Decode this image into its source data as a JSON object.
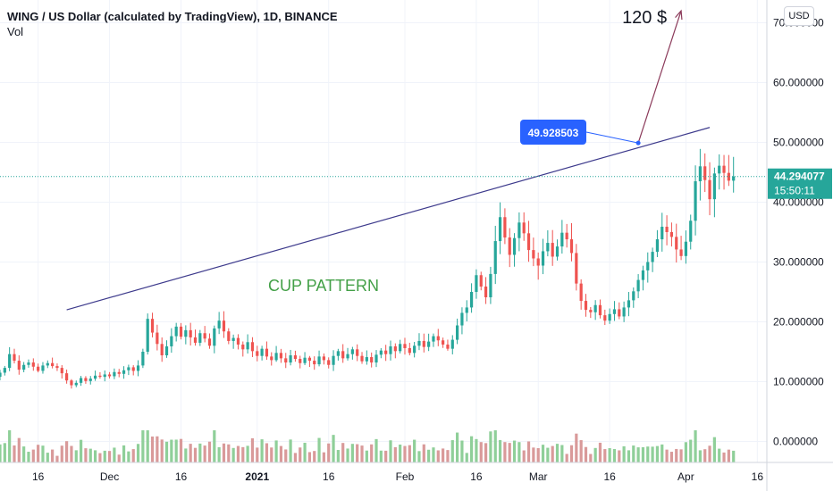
{
  "header": {
    "title": "WING / US Dollar (calculated by TradingView), 1D, BINANCE",
    "volume_label": "Vol"
  },
  "currency_button": "USD",
  "colors": {
    "up": "#26a69a",
    "down": "#ef5350",
    "volume_up": "#8fcf99",
    "volume_down": "#d99a9a",
    "trendline": "#3d3a8c",
    "arrow": "#8b3a5a",
    "pattern_text": "#43a047",
    "callout": "#2962ff",
    "last_price_line": "#26a69a"
  },
  "chart_data": {
    "type": "candlestick",
    "y_axis": {
      "ticks": [
        0,
        10,
        20,
        30,
        40,
        50,
        60,
        70
      ],
      "tick_labels": [
        "0.000000",
        "10.000000",
        "20.000000",
        "30.000000",
        "40.000000",
        "50.000000",
        "60.000000",
        "70.000000"
      ],
      "range": [
        0,
        72
      ]
    },
    "x_axis": {
      "range": [
        "2020-11-08",
        "2021-04-18"
      ],
      "ticks": [
        {
          "date": "2020-11-16",
          "label": "16",
          "bold": false
        },
        {
          "date": "2020-12-01",
          "label": "Dec",
          "bold": false
        },
        {
          "date": "2020-12-16",
          "label": "16",
          "bold": false
        },
        {
          "date": "2021-01-01",
          "label": "2021",
          "bold": true
        },
        {
          "date": "2021-01-16",
          "label": "16",
          "bold": false
        },
        {
          "date": "2021-02-01",
          "label": "Feb",
          "bold": false
        },
        {
          "date": "2021-02-16",
          "label": "16",
          "bold": false
        },
        {
          "date": "2021-03-01",
          "label": "Mar",
          "bold": false
        },
        {
          "date": "2021-03-16",
          "label": "16",
          "bold": false
        },
        {
          "date": "2021-04-01",
          "label": "Apr",
          "bold": false
        },
        {
          "date": "2021-04-16",
          "label": "16",
          "bold": false
        }
      ]
    },
    "last_price": {
      "value": 44.294077,
      "label": "44.294077",
      "countdown": "15:50:11"
    },
    "annotations": {
      "pattern_label": "CUP PATTERN",
      "target_label": "120 $",
      "callout_value": "49.928503",
      "trendline": {
        "start": {
          "date": "2020-11-22",
          "value": 22.0
        },
        "end": {
          "date": "2021-04-06",
          "value": 52.5
        }
      },
      "arrow": {
        "start": {
          "date": "2021-03-22",
          "value": 49.9
        },
        "end": {
          "date": "2021-03-31",
          "value": 72.0
        }
      },
      "callout_point": {
        "date": "2021-03-22",
        "value": 49.9
      }
    },
    "closes": [
      9.0,
      9.8,
      10.3,
      10.0,
      10.8,
      11.5,
      12.3,
      14.6,
      13.5,
      12.0,
      12.8,
      13.2,
      12.5,
      11.8,
      12.7,
      13.1,
      12.6,
      12.3,
      11.4,
      10.2,
      9.4,
      9.8,
      10.6,
      10.1,
      10.5,
      11.0,
      10.8,
      11.2,
      10.9,
      11.6,
      11.3,
      11.9,
      12.4,
      11.8,
      12.7,
      15.0,
      20.5,
      18.2,
      16.3,
      14.4,
      15.9,
      17.6,
      19.2,
      17.5,
      18.6,
      17.4,
      16.5,
      18.1,
      17.2,
      16.0,
      18.9,
      20.2,
      18.4,
      16.8,
      17.3,
      16.2,
      15.4,
      16.6,
      15.1,
      14.3,
      15.5,
      14.2,
      13.6,
      14.8,
      13.9,
      13.2,
      14.4,
      13.8,
      13.1,
      14.0,
      13.5,
      12.9,
      14.2,
      13.6,
      12.8,
      14.3,
      15.1,
      13.9,
      14.6,
      15.4,
      14.3,
      13.4,
      14.1,
      13.2,
      14.5,
      15.2,
      14.6,
      15.9,
      15.1,
      16.3,
      15.6,
      14.8,
      16.0,
      16.8,
      15.8,
      16.7,
      17.6,
      16.9,
      16.2,
      15.5,
      17.0,
      19.4,
      21.5,
      22.4,
      25.0,
      27.8,
      25.9,
      24.1,
      28.0,
      33.5,
      37.5,
      34.1,
      31.2,
      34.0,
      36.6,
      34.8,
      32.0,
      30.6,
      29.4,
      31.8,
      33.2,
      30.9,
      32.6,
      34.9,
      33.8,
      31.5,
      26.4,
      23.5,
      22.0,
      21.6,
      22.8,
      21.1,
      20.2,
      21.3,
      22.1,
      20.9,
      22.4,
      23.6,
      25.1,
      27.0,
      28.6,
      30.0,
      31.7,
      33.8,
      35.9,
      35.0,
      34.2,
      32.1,
      31.0,
      33.4,
      36.9,
      43.5,
      46.0,
      43.7,
      40.5,
      44.8,
      46.1,
      44.9,
      43.6,
      44.3
    ]
  }
}
